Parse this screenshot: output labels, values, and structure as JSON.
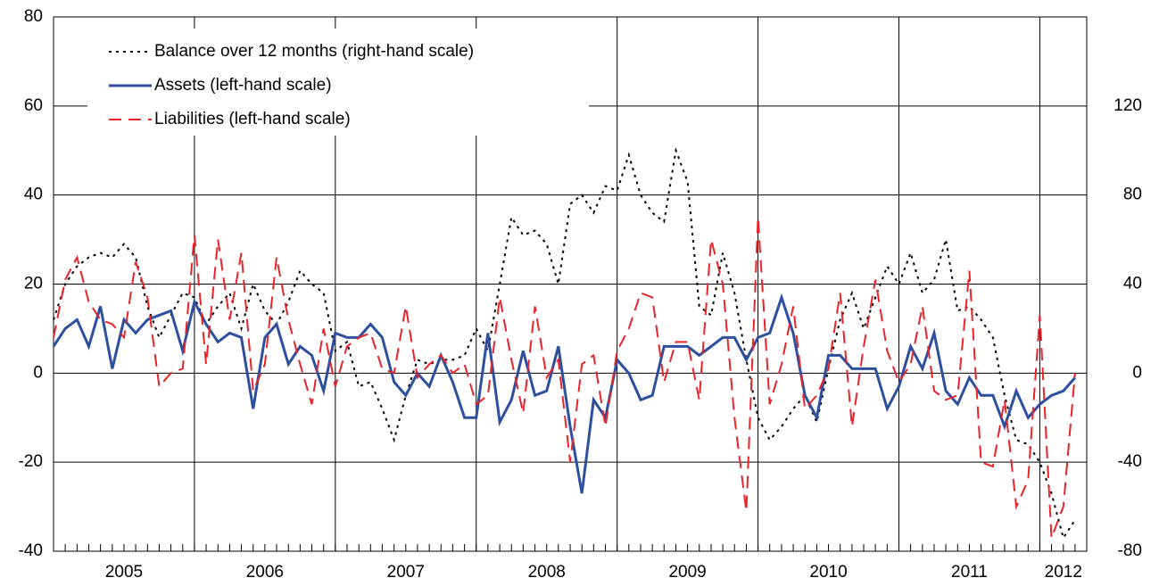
{
  "chart_data": {
    "type": "line",
    "x": [
      2005,
      2005.083,
      2005.167,
      2005.25,
      2005.333,
      2005.417,
      2005.5,
      2005.583,
      2005.667,
      2005.75,
      2005.833,
      2005.917,
      2006,
      2006.083,
      2006.167,
      2006.25,
      2006.333,
      2006.417,
      2006.5,
      2006.583,
      2006.667,
      2006.75,
      2006.833,
      2006.917,
      2007,
      2007.083,
      2007.167,
      2007.25,
      2007.333,
      2007.417,
      2007.5,
      2007.583,
      2007.667,
      2007.75,
      2007.833,
      2007.917,
      2008,
      2008.083,
      2008.167,
      2008.25,
      2008.333,
      2008.417,
      2008.5,
      2008.583,
      2008.667,
      2008.75,
      2008.833,
      2008.917,
      2009,
      2009.083,
      2009.167,
      2009.25,
      2009.333,
      2009.417,
      2009.5,
      2009.583,
      2009.667,
      2009.75,
      2009.833,
      2009.917,
      2010,
      2010.083,
      2010.167,
      2010.25,
      2010.333,
      2010.417,
      2010.5,
      2010.583,
      2010.667,
      2010.75,
      2010.833,
      2010.917,
      2011,
      2011.083,
      2011.167,
      2011.25,
      2011.333,
      2011.417,
      2011.5,
      2011.583,
      2011.667,
      2011.75,
      2011.833,
      2011.917,
      2012,
      2012.083,
      2012.167,
      2012.25
    ],
    "xlim": [
      2005,
      2012.333
    ],
    "xticks": [
      {
        "value": 2005.5,
        "label": "2005"
      },
      {
        "value": 2006.5,
        "label": "2006"
      },
      {
        "value": 2007.5,
        "label": "2007"
      },
      {
        "value": 2008.5,
        "label": "2008"
      },
      {
        "value": 2009.5,
        "label": "2009"
      },
      {
        "value": 2010.5,
        "label": "2010"
      },
      {
        "value": 2011.5,
        "label": "2011"
      },
      {
        "value": 2012.167,
        "label": "2012"
      }
    ],
    "xgrid": [
      2006,
      2007,
      2008,
      2009,
      2010,
      2011,
      2012
    ],
    "ylim": [
      -40,
      80
    ],
    "yticks": [
      -40,
      -20,
      0,
      20,
      40,
      60,
      80
    ],
    "y2lim": [
      -80,
      160
    ],
    "y2ticks": [
      -80,
      -40,
      0,
      40,
      80,
      120
    ],
    "grid": true,
    "legend": "upper left",
    "series": [
      {
        "name": "Balance over 12 months (right-hand scale)",
        "color": "#000000",
        "dash": "dotted",
        "axis": "y2",
        "values": [
          24,
          40,
          48,
          52,
          54,
          52,
          58,
          52,
          30,
          16,
          26,
          36,
          34,
          22,
          30,
          36,
          20,
          40,
          28,
          22,
          32,
          46,
          40,
          36,
          10,
          14,
          -6,
          -4,
          -16,
          -30,
          -10,
          6,
          4,
          6,
          6,
          8,
          20,
          10,
          40,
          70,
          62,
          64,
          58,
          40,
          76,
          80,
          72,
          84,
          82,
          98,
          80,
          72,
          68,
          100,
          86,
          30,
          26,
          54,
          36,
          6,
          -20,
          -30,
          -24,
          -16,
          -10,
          -22,
          2,
          24,
          36,
          20,
          34,
          48,
          40,
          54,
          36,
          42,
          60,
          28,
          30,
          24,
          16,
          -10,
          -30,
          -32,
          -40,
          -54,
          -74,
          -66
        ]
      },
      {
        "name": "Assets (left-hand scale)",
        "color": "#2e4f9e",
        "dash": "solid",
        "values": [
          6,
          10,
          12,
          6,
          15,
          1,
          12,
          9,
          12,
          13,
          14,
          5,
          16,
          11,
          7,
          9,
          8,
          -8,
          8,
          11,
          2,
          6,
          4,
          -4,
          9,
          8,
          8,
          11,
          8,
          -2,
          -5,
          0,
          -3,
          4,
          -2,
          -10,
          -10,
          9,
          -11,
          -6,
          5,
          -5,
          -4,
          6,
          -12,
          -27,
          -6,
          -10,
          3,
          0,
          -6,
          -5,
          6,
          6,
          6,
          4,
          6,
          8,
          8,
          3,
          8,
          9,
          17,
          9,
          -5,
          -10,
          4,
          4,
          1,
          1,
          1,
          -8,
          -3,
          6,
          1,
          9,
          -4,
          -7,
          -1,
          -5,
          -5,
          -12,
          -4,
          -10,
          -7,
          -5,
          -4,
          -1
        ]
      },
      {
        "name": "Liabilities (left-hand scale)",
        "color": "#e8232a",
        "dash": "dashed",
        "values": [
          8,
          21,
          26,
          16,
          12,
          11,
          8,
          25,
          17,
          -3,
          0,
          1,
          31,
          2,
          30,
          12,
          27,
          -4,
          2,
          26,
          12,
          2,
          -7,
          10,
          -3,
          6,
          8,
          9,
          1,
          0,
          15,
          -1,
          2,
          4,
          0,
          2,
          -7,
          -5,
          17,
          3,
          -9,
          15,
          -1,
          3,
          -20,
          2,
          4,
          -12,
          5,
          10,
          18,
          17,
          -2,
          7,
          7,
          -6,
          30,
          20,
          -10,
          -31,
          35,
          -7,
          2,
          15,
          -8,
          -5,
          1,
          18,
          -12,
          6,
          21,
          5,
          -2,
          2,
          15,
          -4,
          -6,
          -5,
          23,
          -20,
          -21,
          -6,
          -30,
          -24,
          13,
          -37,
          -30,
          0
        ]
      }
    ]
  }
}
